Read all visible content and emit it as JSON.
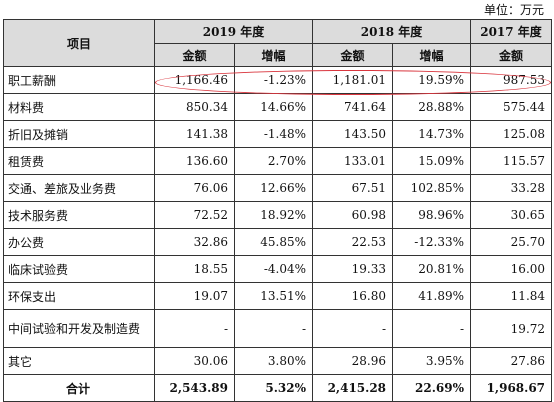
{
  "unit": "单位：万元",
  "header": {
    "item": "项目",
    "years": [
      "2019 年度",
      "2018 年度",
      "2017 年度"
    ],
    "amount": "金额",
    "growth": "增幅"
  },
  "rows": [
    {
      "label": "职工薪酬",
      "y2019": "1,166.46",
      "g2019": "-1.23%",
      "y2018": "1,181.01",
      "g2018": "19.59%",
      "y2017": "987.53"
    },
    {
      "label": "材料费",
      "y2019": "850.34",
      "g2019": "14.66%",
      "y2018": "741.64",
      "g2018": "28.88%",
      "y2017": "575.44"
    },
    {
      "label": "折旧及摊销",
      "y2019": "141.38",
      "g2019": "-1.48%",
      "y2018": "143.50",
      "g2018": "14.73%",
      "y2017": "125.08"
    },
    {
      "label": "租赁费",
      "y2019": "136.60",
      "g2019": "2.70%",
      "y2018": "133.01",
      "g2018": "15.09%",
      "y2017": "115.57"
    },
    {
      "label": "交通、差旅及业务费",
      "y2019": "76.06",
      "g2019": "12.66%",
      "y2018": "67.51",
      "g2018": "102.85%",
      "y2017": "33.28"
    },
    {
      "label": "技术服务费",
      "y2019": "72.52",
      "g2019": "18.92%",
      "y2018": "60.98",
      "g2018": "98.96%",
      "y2017": "30.65"
    },
    {
      "label": "办公费",
      "y2019": "32.86",
      "g2019": "45.85%",
      "y2018": "22.53",
      "g2018": "-12.33%",
      "y2017": "25.70"
    },
    {
      "label": "临床试验费",
      "y2019": "18.55",
      "g2019": "-4.04%",
      "y2018": "19.33",
      "g2018": "20.81%",
      "y2017": "16.00"
    },
    {
      "label": "环保支出",
      "y2019": "19.07",
      "g2019": "13.51%",
      "y2018": "16.80",
      "g2018": "41.89%",
      "y2017": "11.84"
    },
    {
      "label": "中间试验和开发及制造费",
      "y2019": "-",
      "g2019": "-",
      "y2018": "-",
      "g2018": "-",
      "y2017": "19.72"
    },
    {
      "label": "其它",
      "y2019": "30.06",
      "g2019": "3.80%",
      "y2018": "28.96",
      "g2018": "3.95%",
      "y2017": "27.86"
    }
  ],
  "total": {
    "label": "合计",
    "y2019": "2,543.89",
    "g2019": "5.32%",
    "y2018": "2,415.28",
    "g2018": "22.69%",
    "y2017": "1,968.67"
  }
}
